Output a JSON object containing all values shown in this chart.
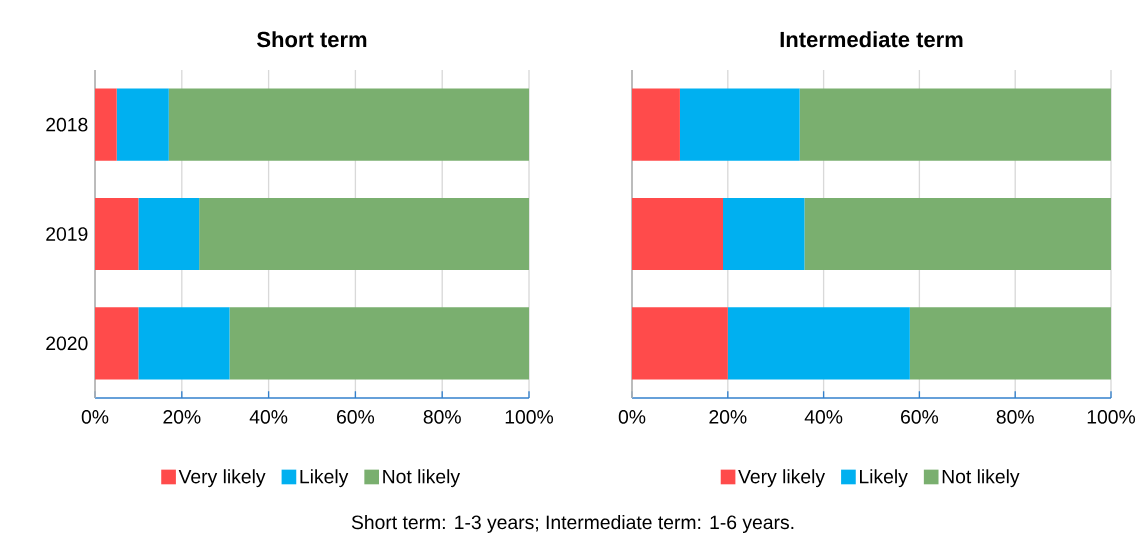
{
  "chart_data": [
    {
      "type": "bar",
      "orientation": "horizontal",
      "stacked": true,
      "title": "Short term",
      "categories": [
        "2018",
        "2019",
        "2020"
      ],
      "series": [
        {
          "name": "Very likely",
          "color": "#ff4b4b",
          "values": [
            5,
            10,
            10
          ]
        },
        {
          "name": "Likely",
          "color": "#00b0f0",
          "values": [
            12,
            14,
            21
          ]
        },
        {
          "name": "Not likely",
          "color": "#7aaf6f",
          "values": [
            83,
            76,
            69
          ]
        }
      ],
      "xlim": [
        0,
        100
      ],
      "xticks": [
        {
          "value": 0,
          "label": "0%"
        },
        {
          "value": 20,
          "label": "20%"
        },
        {
          "value": 40,
          "label": "40%"
        },
        {
          "value": 60,
          "label": "60%"
        },
        {
          "value": 80,
          "label": "80%"
        },
        {
          "value": 100,
          "label": "100%"
        }
      ],
      "grid": "x",
      "legend": "bottom",
      "annotations": [
        "Short term: 1-3 years; Intermediate term: 1-6 years."
      ]
    },
    {
      "type": "bar",
      "orientation": "horizontal",
      "stacked": true,
      "title": "Intermediate term",
      "categories": [
        "2018",
        "2019",
        "2020"
      ],
      "series": [
        {
          "name": "Very likely",
          "color": "#ff4b4b",
          "values": [
            10,
            19,
            20
          ]
        },
        {
          "name": "Likely",
          "color": "#00b0f0",
          "values": [
            25,
            17,
            38
          ]
        },
        {
          "name": "Not likely",
          "color": "#7aaf6f",
          "values": [
            65,
            64,
            42
          ]
        }
      ],
      "xlim": [
        0,
        100
      ],
      "xticks": [
        {
          "value": 0,
          "label": "0%"
        },
        {
          "value": 20,
          "label": "20%"
        },
        {
          "value": 40,
          "label": "40%"
        },
        {
          "value": 60,
          "label": "60%"
        },
        {
          "value": 80,
          "label": "80%"
        },
        {
          "value": 100,
          "label": "100%"
        }
      ],
      "grid": "x",
      "legend": "bottom",
      "tick_labels": "x"
    }
  ]
}
